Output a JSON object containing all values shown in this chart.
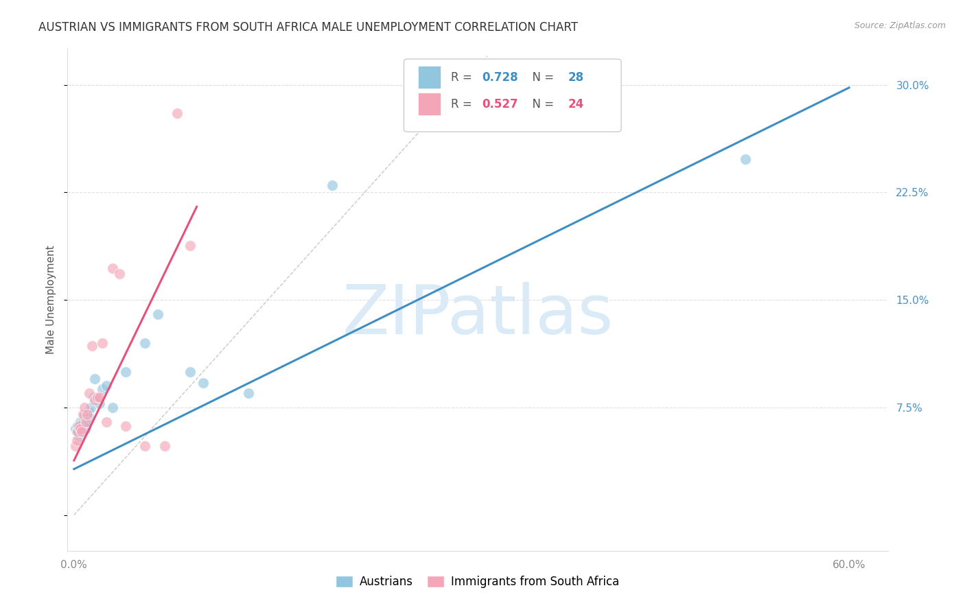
{
  "title": "AUSTRIAN VS IMMIGRANTS FROM SOUTH AFRICA MALE UNEMPLOYMENT CORRELATION CHART",
  "source": "Source: ZipAtlas.com",
  "ylabel": "Male Unemployment",
  "yticks": [
    0.0,
    0.075,
    0.15,
    0.225,
    0.3
  ],
  "ytick_labels": [
    "",
    "7.5%",
    "15.0%",
    "22.5%",
    "30.0%"
  ],
  "xlim": [
    -0.005,
    0.63
  ],
  "ylim": [
    -0.025,
    0.325
  ],
  "blue_color": "#92c5de",
  "pink_color": "#f4a6b8",
  "blue_line_color": "#3e8ec4",
  "pink_line_color": "#e8507a",
  "watermark_color": "#daeaf7",
  "blue_scatter_x": [
    0.001,
    0.002,
    0.003,
    0.004,
    0.005,
    0.006,
    0.007,
    0.008,
    0.009,
    0.01,
    0.011,
    0.012,
    0.013,
    0.015,
    0.016,
    0.018,
    0.02,
    0.022,
    0.025,
    0.03,
    0.04,
    0.055,
    0.065,
    0.09,
    0.1,
    0.135,
    0.2,
    0.52
  ],
  "blue_scatter_y": [
    0.06,
    0.058,
    0.062,
    0.055,
    0.065,
    0.06,
    0.065,
    0.07,
    0.06,
    0.065,
    0.072,
    0.068,
    0.075,
    0.082,
    0.095,
    0.08,
    0.078,
    0.088,
    0.09,
    0.075,
    0.1,
    0.12,
    0.14,
    0.1,
    0.092,
    0.085,
    0.23,
    0.248
  ],
  "pink_scatter_x": [
    0.001,
    0.002,
    0.003,
    0.004,
    0.005,
    0.006,
    0.007,
    0.008,
    0.009,
    0.01,
    0.012,
    0.014,
    0.016,
    0.018,
    0.02,
    0.022,
    0.025,
    0.03,
    0.035,
    0.04,
    0.055,
    0.07,
    0.08,
    0.09
  ],
  "pink_scatter_y": [
    0.048,
    0.052,
    0.058,
    0.062,
    0.06,
    0.058,
    0.07,
    0.075,
    0.065,
    0.07,
    0.085,
    0.118,
    0.08,
    0.082,
    0.082,
    0.12,
    0.065,
    0.172,
    0.168,
    0.062,
    0.048,
    0.048,
    0.28,
    0.188
  ],
  "blue_line_x": [
    0.0,
    0.6
  ],
  "blue_line_y": [
    0.032,
    0.298
  ],
  "pink_line_x": [
    0.0,
    0.095
  ],
  "pink_line_y": [
    0.038,
    0.215
  ],
  "diagonal_line_x": [
    0.0,
    0.32
  ],
  "diagonal_line_y": [
    0.0,
    0.32
  ],
  "title_fontsize": 12,
  "axis_label_fontsize": 11,
  "tick_fontsize": 11,
  "legend_fontsize": 12
}
